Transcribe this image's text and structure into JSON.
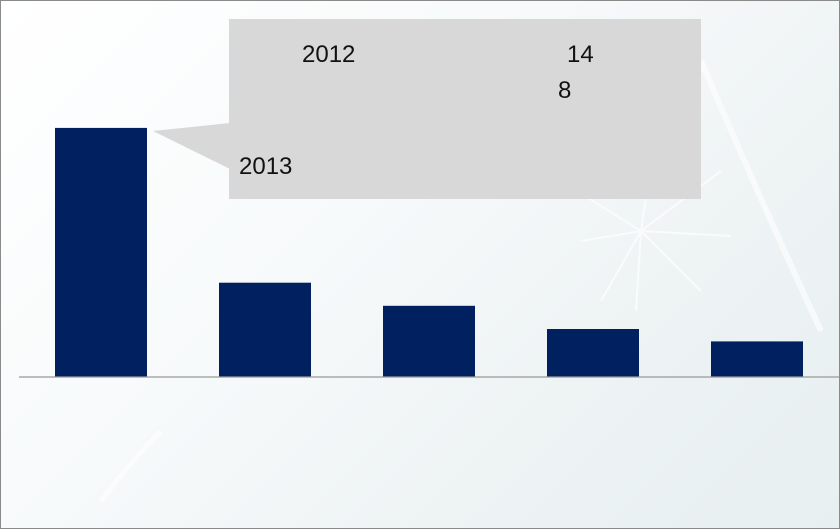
{
  "chart_data": {
    "type": "bar",
    "categories": [
      "",
      "",
      "",
      "",
      ""
    ],
    "values": [
      14,
      5.3,
      4,
      2.7,
      2
    ],
    "ylim": [
      0,
      14.5
    ],
    "grid": false,
    "bar_color": "#002060",
    "axis_color": "#999999"
  },
  "callout": {
    "background": "#d8d8d8",
    "line1_left": "2012",
    "line1_right": "14",
    "line2_right": "8",
    "line3_left": "2013"
  }
}
